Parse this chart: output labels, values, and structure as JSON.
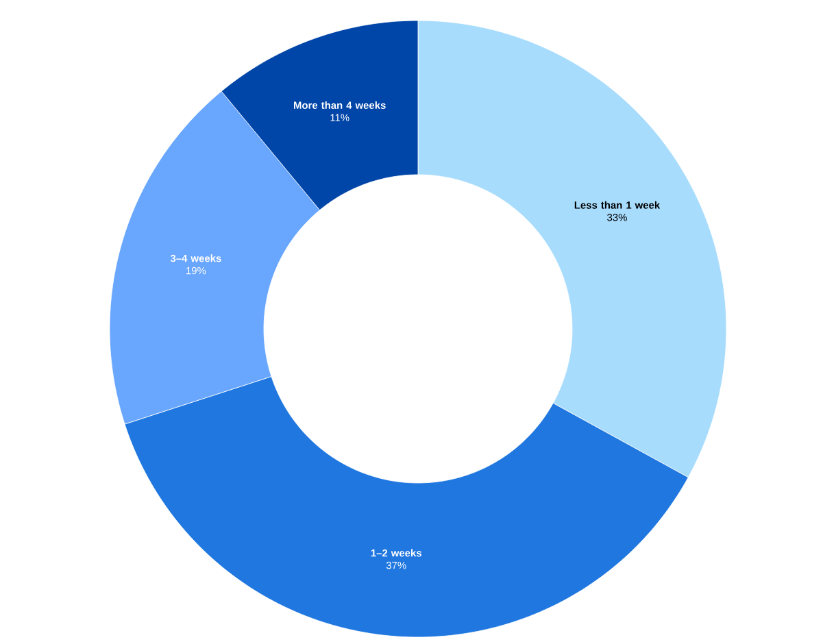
{
  "chart_data": {
    "type": "donut",
    "categories": [
      "Less than 1 week",
      "1–2 weeks",
      "3–4 weeks",
      "More than 4 weeks"
    ],
    "values": [
      33,
      37,
      19,
      11
    ],
    "colors": [
      "#a8dcfd",
      "#1f77df",
      "#69a6fd",
      "#0045a8"
    ],
    "value_labels": [
      "33%",
      "37%",
      "19%",
      "11%"
    ]
  }
}
